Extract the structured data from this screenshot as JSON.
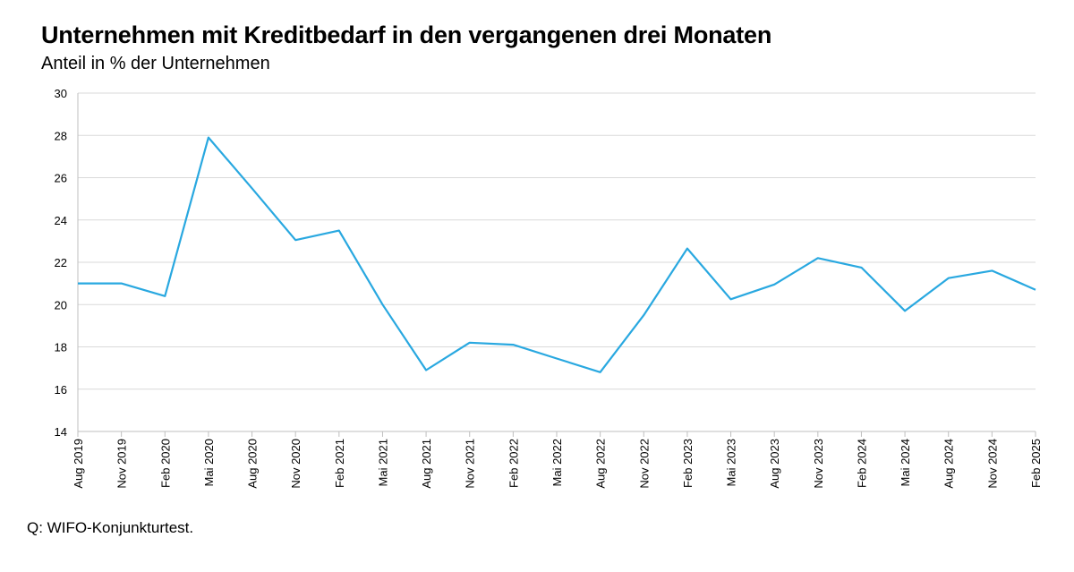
{
  "title": "Unternehmen mit Kreditbedarf in den vergangenen drei Monaten",
  "subtitle": "Anteil in % der Unternehmen",
  "source": "Q: WIFO-Konjunkturtest.",
  "colors": {
    "line": "#29a8e0",
    "grid": "#d9d9d9",
    "axis": "#bfbfbf"
  },
  "chart_data": {
    "type": "line",
    "title": "Unternehmen mit Kreditbedarf in den vergangenen drei Monaten",
    "subtitle": "Anteil in % der Unternehmen",
    "xlabel": "",
    "ylabel": "",
    "ylim": [
      14,
      30
    ],
    "yticks": [
      14,
      16,
      18,
      20,
      22,
      24,
      26,
      28,
      30
    ],
    "grid": true,
    "legend": "none",
    "categories": [
      "Aug 2019",
      "Nov 2019",
      "Feb 2020",
      "Mai 2020",
      "Aug 2020",
      "Nov 2020",
      "Feb 2021",
      "Mai 2021",
      "Aug 2021",
      "Nov 2021",
      "Feb 2022",
      "Mai 2022",
      "Aug 2022",
      "Nov 2022",
      "Feb 2023",
      "Mai 2023",
      "Aug 2023",
      "Nov 2023",
      "Feb 2024",
      "Mai 2024",
      "Aug 2024",
      "Nov 2024",
      "Feb 2025"
    ],
    "values": [
      21.0,
      21.0,
      20.4,
      27.9,
      25.5,
      23.05,
      23.5,
      20.0,
      16.9,
      18.2,
      18.1,
      17.45,
      16.8,
      19.5,
      22.65,
      20.25,
      20.95,
      22.2,
      21.75,
      19.7,
      21.25,
      21.6,
      20.7
    ]
  }
}
